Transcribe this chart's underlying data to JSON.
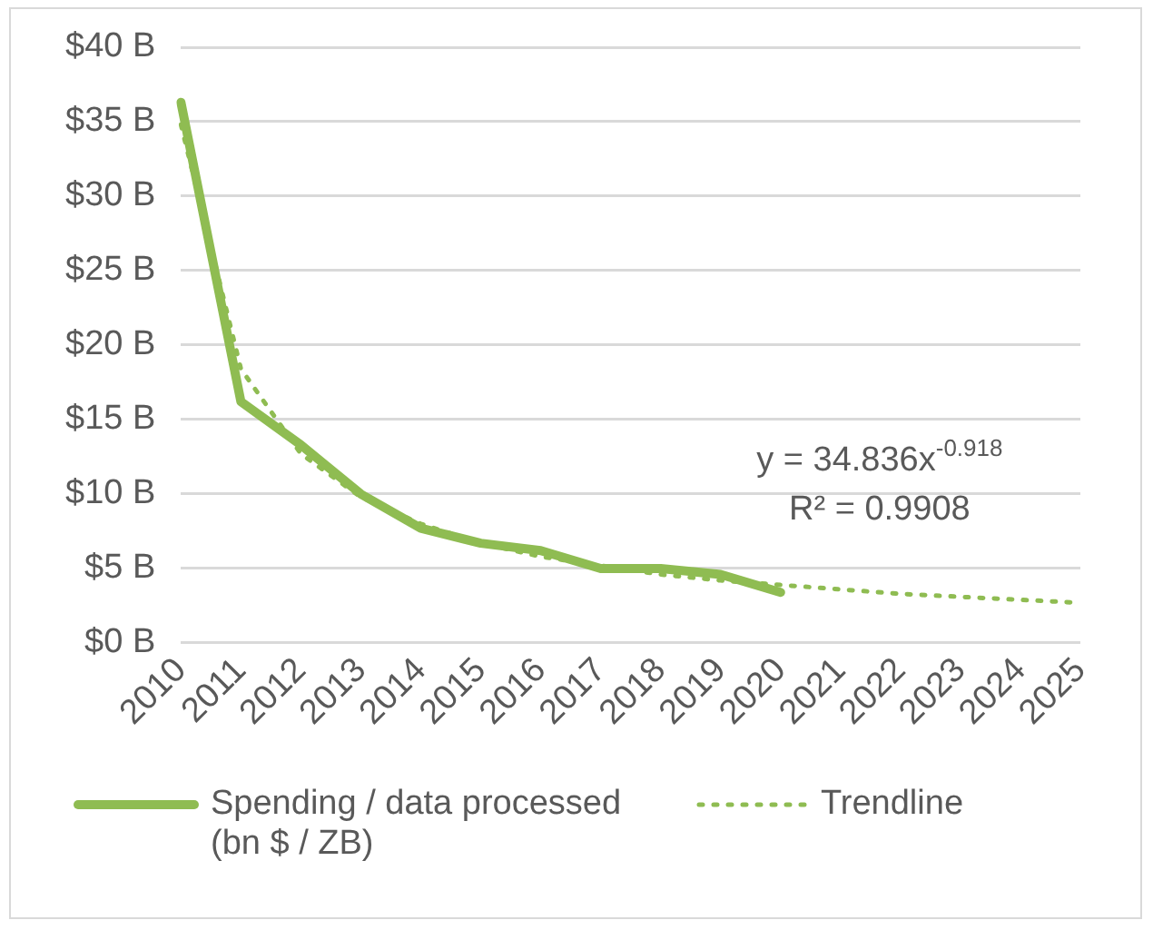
{
  "chart_data": {
    "type": "line",
    "categories": [
      "2010",
      "2011",
      "2012",
      "2013",
      "2014",
      "2015",
      "2016",
      "2017",
      "2018",
      "2019",
      "2020",
      "2021",
      "2022",
      "2023",
      "2024",
      "2025"
    ],
    "series": [
      {
        "name": "Spending / data processed (bn $ / ZB)",
        "color": "#8fbc52",
        "line_style": "solid",
        "values": [
          36.3,
          16.2,
          13.3,
          10.0,
          7.7,
          6.7,
          6.2,
          5.0,
          5.0,
          4.6,
          3.4,
          null,
          null,
          null,
          null,
          null
        ]
      },
      {
        "name": "Trendline",
        "color": "#8fbc52",
        "line_style": "dotted",
        "values": [
          34.8,
          18.4,
          12.7,
          9.8,
          8.0,
          6.7,
          5.8,
          5.2,
          4.6,
          4.2,
          3.9,
          3.6,
          3.3,
          3.1,
          2.9,
          2.7
        ]
      }
    ],
    "ylim": [
      0,
      40
    ],
    "yticks": [
      {
        "value": 0,
        "label": "$0 B"
      },
      {
        "value": 5,
        "label": "$5 B"
      },
      {
        "value": 10,
        "label": "$10 B"
      },
      {
        "value": 15,
        "label": "$15 B"
      },
      {
        "value": 20,
        "label": "$20 B"
      },
      {
        "value": 25,
        "label": "$25 B"
      },
      {
        "value": 30,
        "label": "$30 B"
      },
      {
        "value": 35,
        "label": "$35 B"
      },
      {
        "value": 40,
        "label": "$40 B"
      }
    ],
    "annotations": [
      "y = 34.836x$^{-0.918}$",
      "R² = 0.9908"
    ],
    "grid": "y",
    "legend": "bottom",
    "marker": "none"
  }
}
